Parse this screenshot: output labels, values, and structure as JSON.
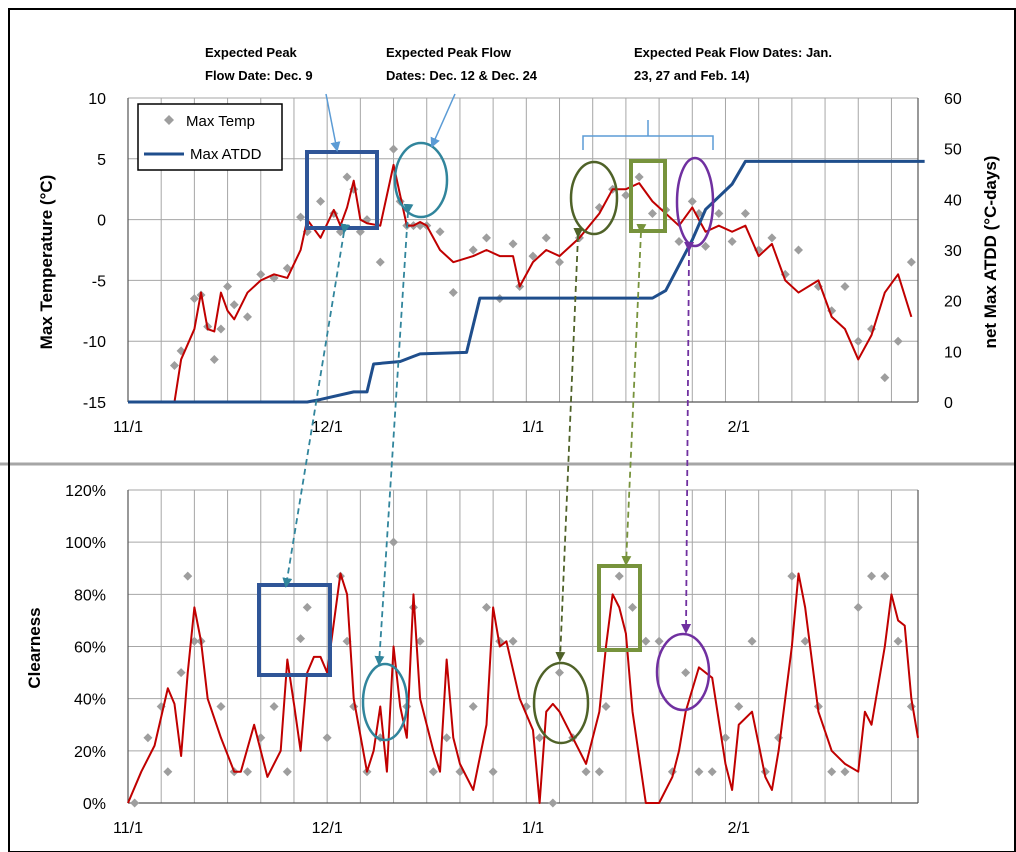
{
  "colors": {
    "temp_markers": "#9e9e9e",
    "red_line": "#c00000",
    "atdd_line": "#1f4e8c",
    "blue_box": "#2f5597",
    "teal_circle": "#31859c",
    "green_circle": "#4f6228",
    "green_box": "#77933c",
    "purple_circle": "#7030a0",
    "bracket": "#5b9bd5",
    "grid": "#a6a6a6"
  },
  "x_ticks": [
    "11/1",
    "12/1",
    "1/1",
    "2/1"
  ],
  "annotations": {
    "dec9": [
      "Expected Peak",
      "Flow Date: Dec. 9"
    ],
    "dec12_24": [
      "Expected Peak Flow",
      "Dates: Dec. 12 & Dec. 24"
    ],
    "jan_feb": [
      "Expected Peak Flow Dates: Jan.",
      "23, 27 and Feb. 14)"
    ]
  },
  "chart_data": [
    {
      "type": "line",
      "title": "",
      "ylabel": "Max Temperature (°C)",
      "y2label": "net Max ATDD (°C-days)",
      "ylim": [
        -15,
        10
      ],
      "y2lim": [
        0,
        60
      ],
      "yticks": [
        "10",
        "5",
        "0",
        "-5",
        "-10",
        "-15"
      ],
      "y2ticks": [
        "60",
        "50",
        "40",
        "30",
        "20",
        "10",
        "0"
      ],
      "grid": true,
      "legend_position": "top-left",
      "series": [
        {
          "name": "Max Temp",
          "style": "markers",
          "x": [
            "11/8",
            "11/9",
            "11/11",
            "11/12",
            "11/13",
            "11/14",
            "11/15",
            "11/16",
            "11/17",
            "11/19",
            "11/21",
            "11/23",
            "11/25",
            "11/27",
            "11/28",
            "11/30",
            "12/2",
            "12/3",
            "12/4",
            "12/5",
            "12/6",
            "12/7",
            "12/9",
            "12/11",
            "12/12",
            "12/13",
            "12/14",
            "12/15",
            "12/16",
            "12/18",
            "12/20",
            "12/23",
            "12/25",
            "12/27",
            "12/29",
            "12/30",
            "1/1",
            "1/3",
            "1/5",
            "1/8",
            "1/11",
            "1/13",
            "1/15",
            "1/17",
            "1/19",
            "1/21",
            "1/23",
            "1/25",
            "1/26",
            "1/27",
            "1/29",
            "1/31",
            "2/2",
            "2/4",
            "2/6",
            "2/8",
            "2/10",
            "2/13",
            "2/15",
            "2/17",
            "2/19",
            "2/21",
            "2/23",
            "2/25",
            "2/27"
          ],
          "y": [
            -12.0,
            -10.8,
            -6.5,
            -6.2,
            -8.8,
            -11.5,
            -9.0,
            -5.5,
            -7.0,
            -8.0,
            -4.5,
            -4.8,
            -4.0,
            0.2,
            -1.0,
            1.5,
            0.5,
            -1.0,
            3.5,
            2.5,
            -1.0,
            0.0,
            -3.5,
            5.8,
            1.5,
            -0.5,
            -0.5,
            -0.5,
            -0.5,
            -1.0,
            -6.0,
            -2.5,
            -1.5,
            -6.5,
            -2.0,
            -5.5,
            -3.0,
            -1.5,
            -3.5,
            -1.5,
            1.0,
            2.5,
            2.0,
            3.5,
            0.5,
            0.8,
            -1.8,
            1.5,
            0.5,
            -2.2,
            0.5,
            -1.8,
            0.5,
            -2.5,
            -1.5,
            -4.5,
            -2.5,
            -5.5,
            -7.5,
            -5.5,
            -10.0,
            -9.0,
            -13.0,
            -10.0,
            -3.5
          ]
        },
        {
          "name": "",
          "style": "line",
          "x": [
            "11/8",
            "11/9",
            "11/11",
            "11/12",
            "11/13",
            "11/14",
            "11/15",
            "11/16",
            "11/17",
            "11/19",
            "11/21",
            "11/23",
            "11/25",
            "11/27",
            "11/28",
            "11/30",
            "12/2",
            "12/3",
            "12/4",
            "12/5",
            "12/6",
            "12/7",
            "12/9",
            "12/11",
            "12/12",
            "12/13",
            "12/14",
            "12/15",
            "12/16",
            "12/18",
            "12/20",
            "12/23",
            "12/25",
            "12/27",
            "12/29",
            "12/30",
            "1/1",
            "1/3",
            "1/5",
            "1/8",
            "1/11",
            "1/13",
            "1/15",
            "1/17",
            "1/19",
            "1/21",
            "1/23",
            "1/25",
            "1/26",
            "1/27",
            "1/29",
            "1/31",
            "2/2",
            "2/4",
            "2/6",
            "2/8",
            "2/10",
            "2/13",
            "2/15",
            "2/17",
            "2/19",
            "2/21",
            "2/23",
            "2/25",
            "2/27"
          ],
          "y": [
            -15.0,
            -11.5,
            -9.0,
            -6.0,
            -9.0,
            -9.2,
            -6.0,
            -7.5,
            -8.2,
            -6.0,
            -5.0,
            -4.5,
            -4.8,
            -2.5,
            0.0,
            -1.5,
            0.8,
            -0.5,
            1.0,
            3.2,
            0.0,
            -0.3,
            -0.5,
            4.5,
            2.0,
            -0.5,
            -0.5,
            -0.2,
            -0.5,
            -2.5,
            -3.5,
            -3.0,
            -2.5,
            -3.0,
            -3.0,
            -5.5,
            -3.5,
            -2.5,
            -3.0,
            -1.5,
            0.5,
            2.5,
            2.5,
            3.0,
            1.5,
            0.5,
            -0.5,
            1.0,
            0.0,
            -1.0,
            -0.5,
            -1.0,
            -0.5,
            -3.0,
            -2.0,
            -5.0,
            -6.0,
            -5.0,
            -8.0,
            -9.0,
            -11.5,
            -9.5,
            -6.0,
            -4.5,
            -8.0
          ]
        },
        {
          "name": "Max ATDD",
          "style": "line",
          "axis": "right",
          "x": [
            "11/1",
            "11/28",
            "11/30",
            "12/5",
            "12/7",
            "12/8",
            "12/12",
            "12/14",
            "12/15",
            "12/22",
            "12/24",
            "1/19",
            "1/21",
            "1/25",
            "1/27",
            "1/31",
            "2/2",
            "3/1"
          ],
          "y": [
            0,
            0,
            0.5,
            2.0,
            2.0,
            7.5,
            8.0,
            9.0,
            9.5,
            9.8,
            20.5,
            20.5,
            22.0,
            32.0,
            38.0,
            43.0,
            47.5,
            47.5
          ]
        }
      ]
    },
    {
      "type": "line",
      "title": "",
      "ylabel": "Clearness",
      "ylim": [
        0,
        120
      ],
      "yticks": [
        "120%",
        "100%",
        "80%",
        "60%",
        "40%",
        "20%",
        "0%"
      ],
      "grid": true,
      "series": [
        {
          "name": "",
          "style": "markers",
          "x": [
            "11/2",
            "11/4",
            "11/6",
            "11/7",
            "11/9",
            "11/10",
            "11/11",
            "11/12",
            "11/15",
            "11/17",
            "11/19",
            "11/21",
            "11/23",
            "11/25",
            "11/27",
            "11/28",
            "12/1",
            "12/3",
            "12/4",
            "12/5",
            "12/7",
            "12/9",
            "12/11",
            "12/13",
            "12/14",
            "12/15",
            "12/17",
            "12/19",
            "12/21",
            "12/23",
            "12/25",
            "12/26",
            "12/27",
            "12/29",
            "12/31",
            "1/2",
            "1/4",
            "1/5",
            "1/7",
            "1/9",
            "1/11",
            "1/12",
            "1/14",
            "1/16",
            "1/18",
            "1/20",
            "1/22",
            "1/24",
            "1/26",
            "1/28",
            "1/30",
            "2/1",
            "2/3",
            "2/5",
            "2/7",
            "2/9",
            "2/11",
            "2/13",
            "2/15",
            "2/17",
            "2/19",
            "2/21",
            "2/23",
            "2/25",
            "2/27"
          ],
          "y": [
            0,
            25,
            37,
            12,
            50,
            87,
            62,
            62,
            37,
            12,
            12,
            25,
            37,
            12,
            63,
            75,
            25,
            87,
            62,
            37,
            12,
            25,
            100,
            37,
            75,
            62,
            12,
            25,
            12,
            37,
            75,
            12,
            62,
            62,
            37,
            25,
            0,
            50,
            25,
            12,
            12,
            37,
            87,
            75,
            62,
            62,
            12,
            50,
            12,
            12,
            25,
            37,
            62,
            12,
            25,
            87,
            62,
            37,
            12,
            12,
            75,
            87,
            87,
            62,
            37
          ]
        },
        {
          "name": "",
          "style": "line",
          "x": [
            "11/1",
            "11/3",
            "11/5",
            "11/7",
            "11/8",
            "11/9",
            "11/10",
            "11/11",
            "11/12",
            "11/13",
            "11/15",
            "11/17",
            "11/18",
            "11/20",
            "11/22",
            "11/24",
            "11/25",
            "11/26",
            "11/27",
            "11/28",
            "11/29",
            "11/30",
            "12/1",
            "12/3",
            "12/4",
            "12/5",
            "12/7",
            "12/8",
            "12/9",
            "12/10",
            "12/11",
            "12/12",
            "12/13",
            "12/14",
            "12/15",
            "12/17",
            "12/18",
            "12/19",
            "12/20",
            "12/21",
            "12/23",
            "12/25",
            "12/26",
            "12/27",
            "12/28",
            "12/30",
            "1/1",
            "1/2",
            "1/3",
            "1/4",
            "1/5",
            "1/7",
            "1/9",
            "1/11",
            "1/12",
            "1/13",
            "1/14",
            "1/15",
            "1/16",
            "1/18",
            "1/19",
            "1/20",
            "1/22",
            "1/23",
            "1/24",
            "1/26",
            "1/28",
            "1/30",
            "1/31",
            "2/1",
            "2/3",
            "2/5",
            "2/6",
            "2/7",
            "2/9",
            "2/10",
            "2/11",
            "2/13",
            "2/15",
            "2/17",
            "2/19",
            "2/20",
            "2/21",
            "2/23",
            "2/24",
            "2/25",
            "2/26",
            "2/27",
            "2/28"
          ],
          "y": [
            0,
            12,
            22,
            44,
            38,
            18,
            50,
            75,
            62,
            40,
            25,
            12,
            12,
            30,
            10,
            20,
            55,
            38,
            20,
            50,
            56,
            56,
            50,
            88,
            80,
            40,
            12,
            20,
            37,
            12,
            60,
            37,
            25,
            80,
            40,
            20,
            12,
            55,
            25,
            15,
            5,
            30,
            75,
            60,
            62,
            40,
            28,
            0,
            35,
            38,
            35,
            25,
            15,
            35,
            60,
            80,
            75,
            65,
            35,
            0,
            0,
            0,
            10,
            20,
            35,
            52,
            48,
            15,
            5,
            30,
            35,
            10,
            5,
            20,
            60,
            88,
            75,
            35,
            20,
            15,
            12,
            35,
            30,
            60,
            80,
            70,
            68,
            40,
            25
          ]
        }
      ]
    }
  ]
}
